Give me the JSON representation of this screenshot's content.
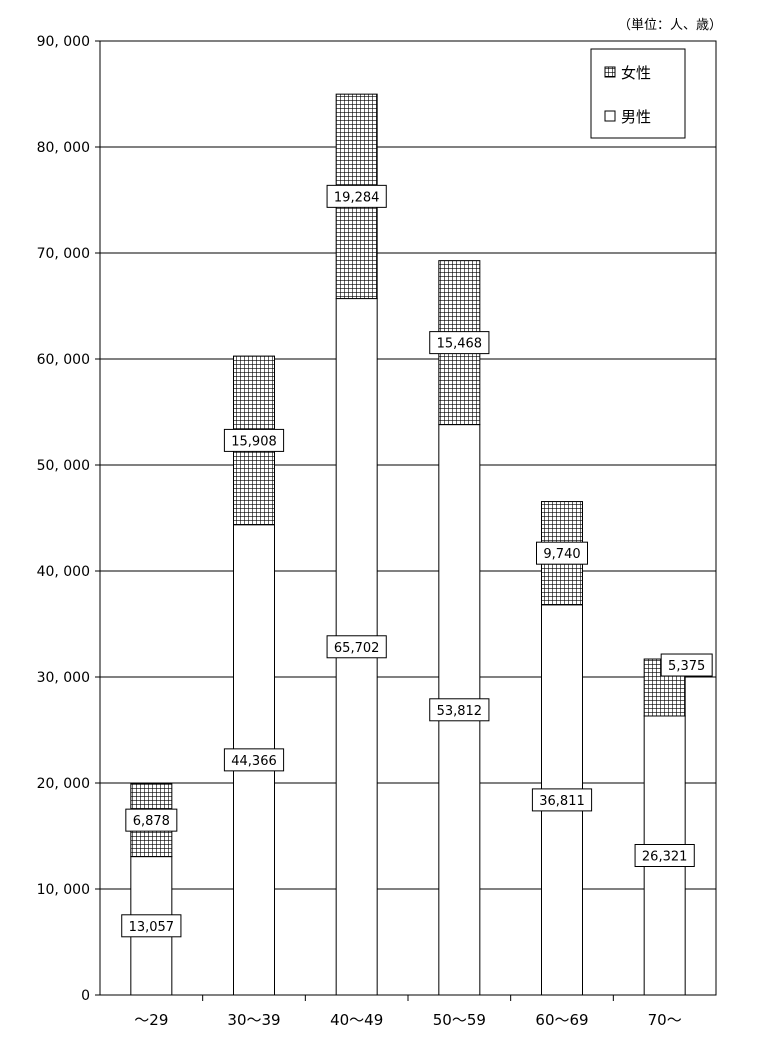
{
  "unit_note": "（単位：人、歳）",
  "chart_data": {
    "type": "bar",
    "stacked": true,
    "title": "",
    "xlabel": "",
    "ylabel": "",
    "ylim": [
      0,
      90000
    ],
    "y_ticks": [
      "0",
      "10, 000",
      "20, 000",
      "30, 000",
      "40, 000",
      "50, 000",
      "60, 000",
      "70, 000",
      "80, 000",
      "90, 000"
    ],
    "categories": [
      "〜29",
      "30〜39",
      "40〜49",
      "50〜59",
      "60〜69",
      "70〜"
    ],
    "series": [
      {
        "name": "男性",
        "pattern": "plain",
        "values": [
          13057,
          44366,
          65702,
          53812,
          36811,
          26321
        ],
        "labels": [
          "13,057",
          "44,366",
          "65,702",
          "53,812",
          "36,811",
          "26,321"
        ]
      },
      {
        "name": "女性",
        "pattern": "grid",
        "values": [
          6878,
          15908,
          19284,
          15468,
          9740,
          5375
        ],
        "labels": [
          "6,878",
          "15,908",
          "19,284",
          "15,468",
          "9,740",
          "5,375"
        ]
      }
    ],
    "legend": {
      "position": "top-right",
      "items": [
        {
          "marker": "⊞",
          "label": "女性"
        },
        {
          "marker": "□",
          "label": "男性"
        }
      ]
    },
    "grid": true
  }
}
